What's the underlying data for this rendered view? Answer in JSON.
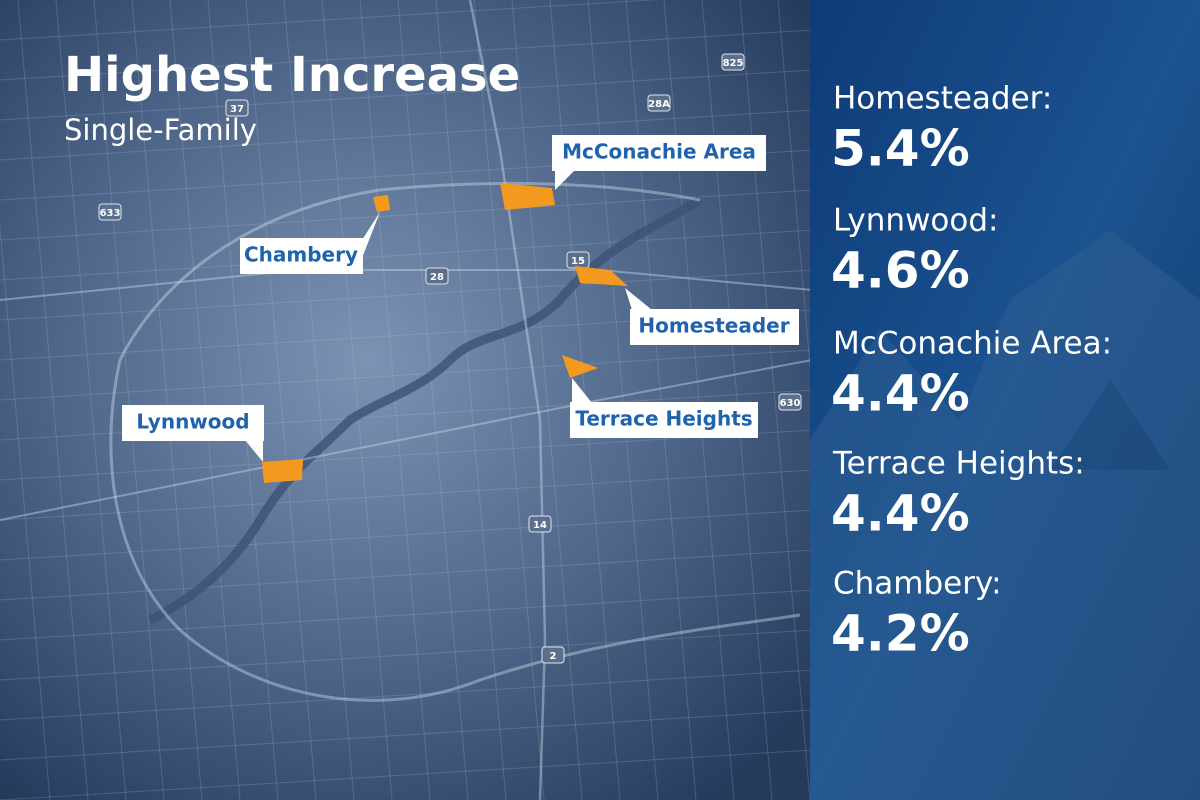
{
  "header": {
    "title": "Highest Increase",
    "subtitle": "Single-Family"
  },
  "map": {
    "callouts": [
      {
        "label": "McConachie Area"
      },
      {
        "label": "Chambery"
      },
      {
        "label": "Homesteader"
      },
      {
        "label": "Terrace Heights"
      },
      {
        "label": "Lynnwood"
      }
    ],
    "shields": [
      "633",
      "28",
      "15",
      "14",
      "2",
      "630",
      "28A",
      "37",
      "825"
    ]
  },
  "list": [
    {
      "name": "Homesteader:",
      "value": "5.4%"
    },
    {
      "name": "Lynnwood:",
      "value": "4.6%"
    },
    {
      "name": "McConachie Area:",
      "value": "4.4%"
    },
    {
      "name": "Terrace Heights:",
      "value": "4.4%"
    },
    {
      "name": "Chambery:",
      "value": "4.2%"
    }
  ]
}
